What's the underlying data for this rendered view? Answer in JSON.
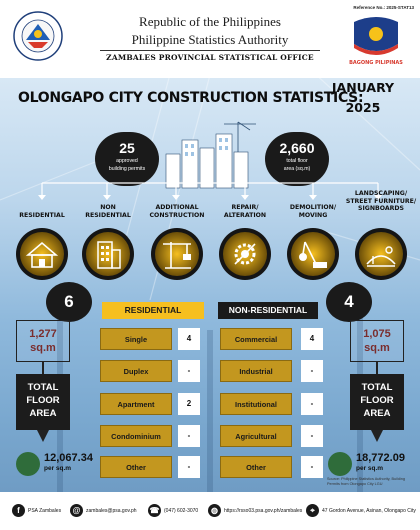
{
  "header": {
    "reference": "Reference No.: 2025-STAT13",
    "line1": "Republic of the Philippines",
    "line2": "Philippine Statistics Authority",
    "office": "ZAMBALES PROVINCIAL STATISTICAL OFFICE",
    "logo_left_text": "PHILIPPINE STATISTICS AUTHORITY",
    "logo_right_text": "BAGONG PILIPINAS"
  },
  "title": {
    "main": "OLONGAPO CITY CONSTRUCTION STATISTICS:",
    "month": "JANUARY",
    "year": "2025"
  },
  "top_stats": {
    "permits_value": "25",
    "permits_label_1": "approved",
    "permits_label_2": "building permits",
    "floor_value": "2,660",
    "floor_label_1": "total floor",
    "floor_label_2": "area (sq.m)"
  },
  "categories": [
    {
      "label_1": "RESIDENTIAL",
      "label_2": "",
      "label_3": "",
      "icon": "house-icon"
    },
    {
      "label_1": "NON",
      "label_2": "RESIDENTIAL",
      "label_3": "",
      "icon": "building-icon"
    },
    {
      "label_1": "ADDITIONAL",
      "label_2": "CONSTRUCTION",
      "label_3": "",
      "icon": "crane-icon"
    },
    {
      "label_1": "REPAIR/",
      "label_2": "ALTERATION",
      "label_3": "",
      "icon": "gear-tools-icon"
    },
    {
      "label_1": "DEMOLITION/",
      "label_2": "MOVING",
      "label_3": "",
      "icon": "wrecking-ball-icon"
    },
    {
      "label_1": "LANDSCAPING/",
      "label_2": "STREET FURNITURE/",
      "label_3": "SIGNBOARDS",
      "icon": "landscape-icon"
    }
  ],
  "residential": {
    "count": "6",
    "area_value": "1,277",
    "area_unit": "sq.m",
    "area_title_1": "TOTAL",
    "area_title_2": "FLOOR",
    "area_title_3": "AREA",
    "cost": "12,067.34",
    "cost_unit": "per sq.m",
    "header": "RESIDENTIAL",
    "rows": [
      {
        "label": "Single",
        "value": "4"
      },
      {
        "label": "Duplex",
        "value": "-"
      },
      {
        "label": "Apartment",
        "value": "2"
      },
      {
        "label": "Condominium",
        "value": "-"
      },
      {
        "label": "Other",
        "value": "-"
      }
    ]
  },
  "non_residential": {
    "count": "4",
    "area_value": "1,075",
    "area_unit": "sq.m",
    "area_title_1": "TOTAL",
    "area_title_2": "FLOOR",
    "area_title_3": "AREA",
    "cost": "18,772.09",
    "cost_unit": "per sq.m",
    "header": "NON-RESIDENTIAL",
    "rows": [
      {
        "label": "Commercial",
        "value": "4"
      },
      {
        "label": "Industrial",
        "value": "-"
      },
      {
        "label": "Institutional",
        "value": "-"
      },
      {
        "label": "Agricultural",
        "value": "-"
      },
      {
        "label": "Other",
        "value": "-"
      }
    ]
  },
  "source_note": "Source: Philippine Statistics Authority, Building Permits from Olongapo City LGU",
  "footer": {
    "facebook": "PSA Zambales",
    "email": "zambales@psa.gov.ph",
    "phone": "(047) 602-3070",
    "website": "https://rsso03.psa.gov.ph/zambales",
    "address": "47 Gordon Avenue, Asinan, Olongapo City"
  },
  "colors": {
    "accent_gold": "#f6bf1f",
    "row_gold": "#c3971f",
    "dark": "#1a1a1a"
  }
}
